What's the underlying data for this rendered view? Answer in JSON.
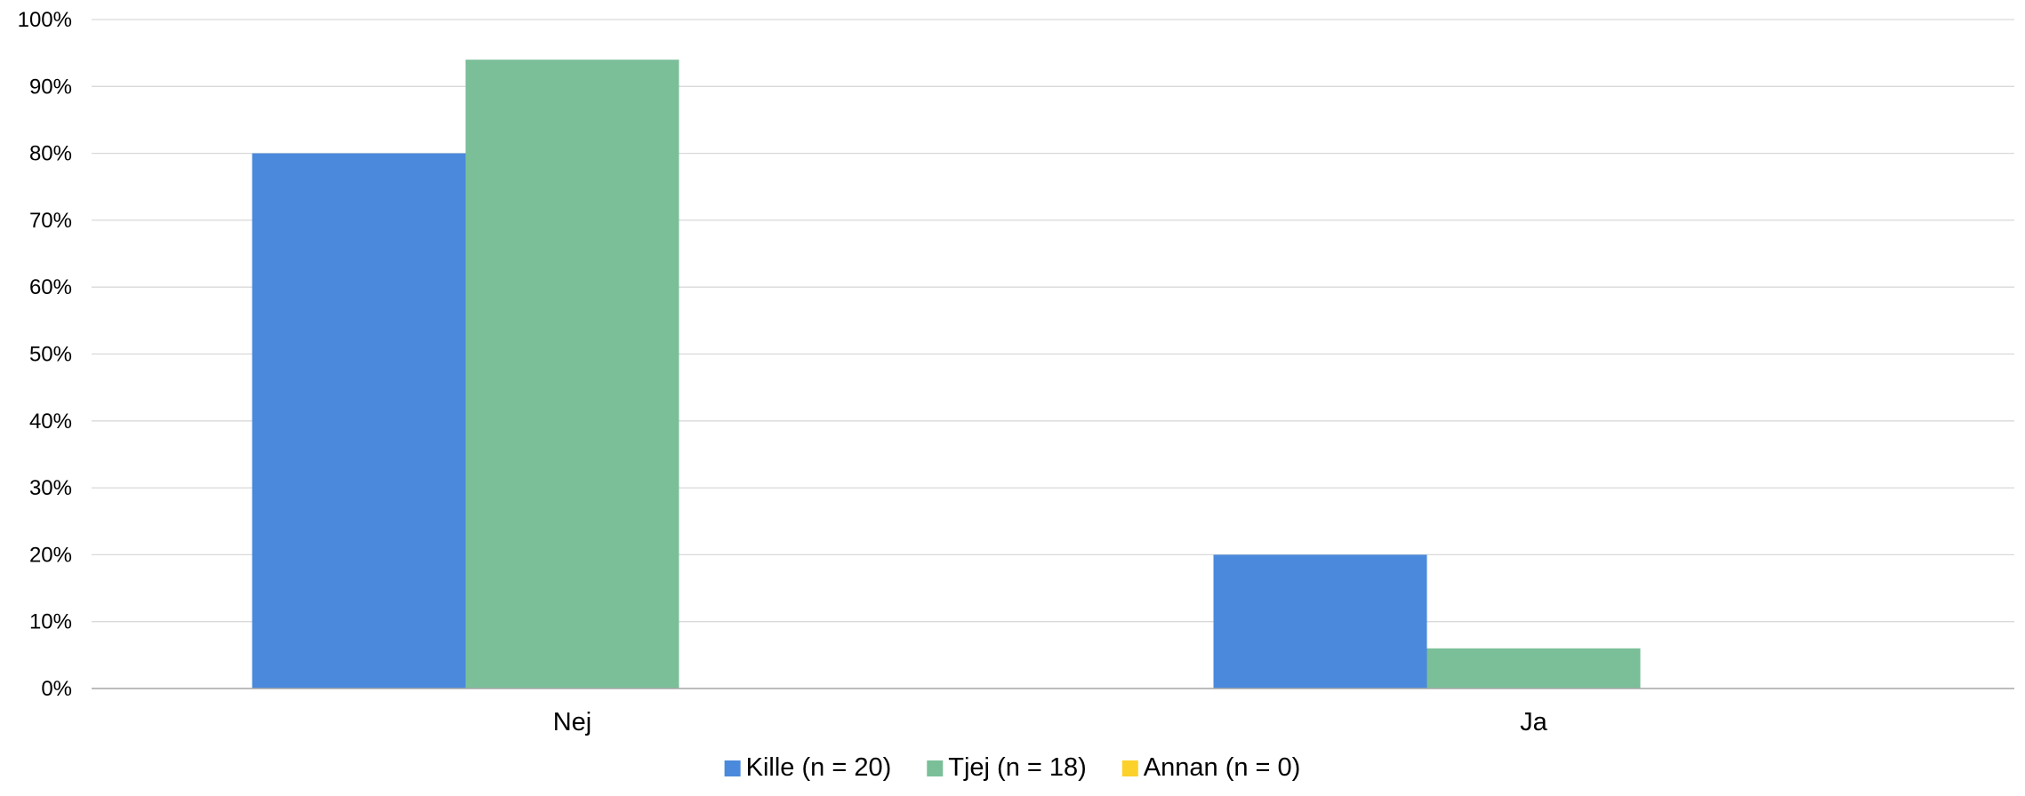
{
  "chart_data": {
    "type": "bar",
    "title": "",
    "xlabel": "",
    "ylabel": "",
    "categories": [
      "Nej",
      "Ja"
    ],
    "series": [
      {
        "name": "Kille (n = 20)",
        "color": "#4a89dc",
        "values": [
          80,
          20
        ]
      },
      {
        "name": "Tjej (n = 18)",
        "color": "#7bbf99",
        "values": [
          94,
          6
        ]
      },
      {
        "name": "Annan (n = 0)",
        "color": "#fcd12a",
        "values": [
          0,
          0
        ]
      }
    ],
    "ylim": [
      0,
      100
    ],
    "yticks": [
      0,
      10,
      20,
      30,
      40,
      50,
      60,
      70,
      80,
      90,
      100
    ],
    "ytick_labels": [
      "0%",
      "10%",
      "20%",
      "30%",
      "40%",
      "50%",
      "60%",
      "70%",
      "80%",
      "90%",
      "100%"
    ],
    "grid": true,
    "gridline_color": "#d9d9d9",
    "axis_color": "#a6a6a6",
    "legend_position": "bottom"
  }
}
